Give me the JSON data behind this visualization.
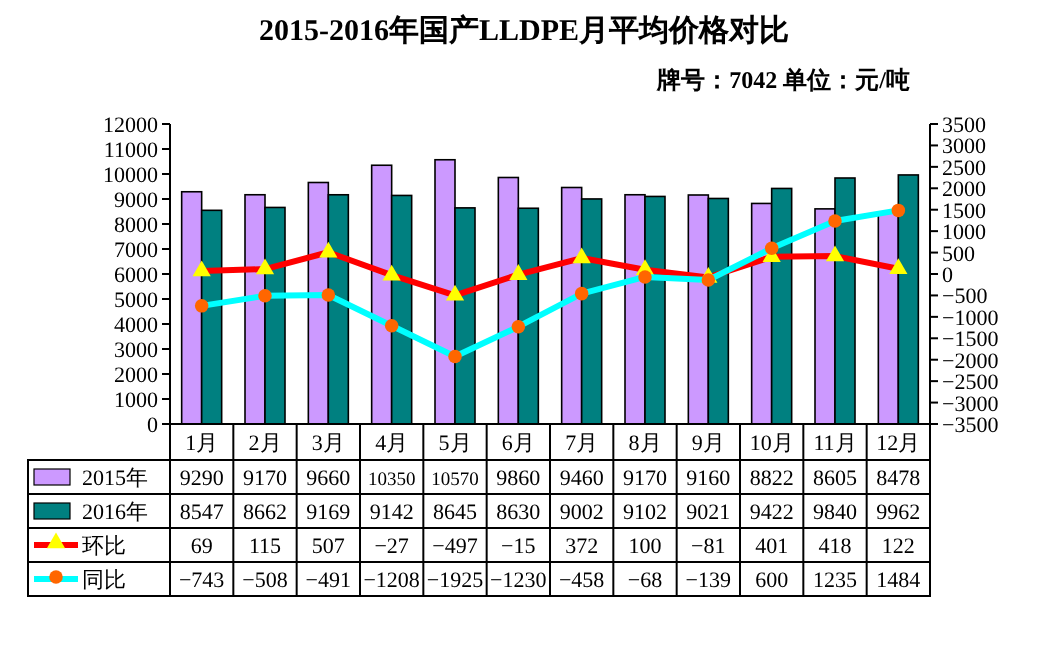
{
  "chart_data": {
    "type": "bar",
    "title": "2015-2016年国产LLDPE月平均价格对比",
    "subtitle": "牌号：7042 单位：元/吨",
    "categories": [
      "1月",
      "2月",
      "3月",
      "4月",
      "5月",
      "6月",
      "7月",
      "8月",
      "9月",
      "10月",
      "11月",
      "12月"
    ],
    "series": [
      {
        "name": "2015年",
        "color": "#cc99ff",
        "values": [
          9290,
          9170,
          9660,
          10350,
          10570,
          9860,
          9460,
          9170,
          9160,
          8822,
          8605,
          8478
        ]
      },
      {
        "name": "2016年",
        "color": "#008080",
        "values": [
          8547,
          8662,
          9169,
          9142,
          8645,
          8630,
          9002,
          9102,
          9021,
          9422,
          9840,
          9962
        ]
      },
      {
        "name": "环比",
        "type": "line",
        "axis": "y2",
        "marker": "triangle",
        "color": "#ff0000",
        "values": [
          69,
          115,
          507,
          -27,
          -497,
          -15,
          372,
          100,
          -81,
          401,
          418,
          122
        ]
      },
      {
        "name": "同比",
        "type": "line",
        "axis": "y2",
        "marker": "circle",
        "color": "#00ffff",
        "values": [
          -743,
          -508,
          -491,
          -1208,
          -1925,
          -1230,
          -458,
          -68,
          -139,
          600,
          1235,
          1484
        ]
      }
    ],
    "ylim": [
      0,
      12000
    ],
    "yticks": [
      0,
      1000,
      2000,
      3000,
      4000,
      5000,
      6000,
      7000,
      8000,
      9000,
      10000,
      11000,
      12000
    ],
    "y2lim": [
      -3500,
      3500
    ],
    "y2ticks": [
      -3500,
      -3000,
      -2500,
      -2000,
      -1500,
      -1000,
      -500,
      0,
      500,
      1000,
      1500,
      2000,
      2500,
      3000,
      3500
    ],
    "data_labels": true,
    "legend": "bottom",
    "grid": false
  }
}
